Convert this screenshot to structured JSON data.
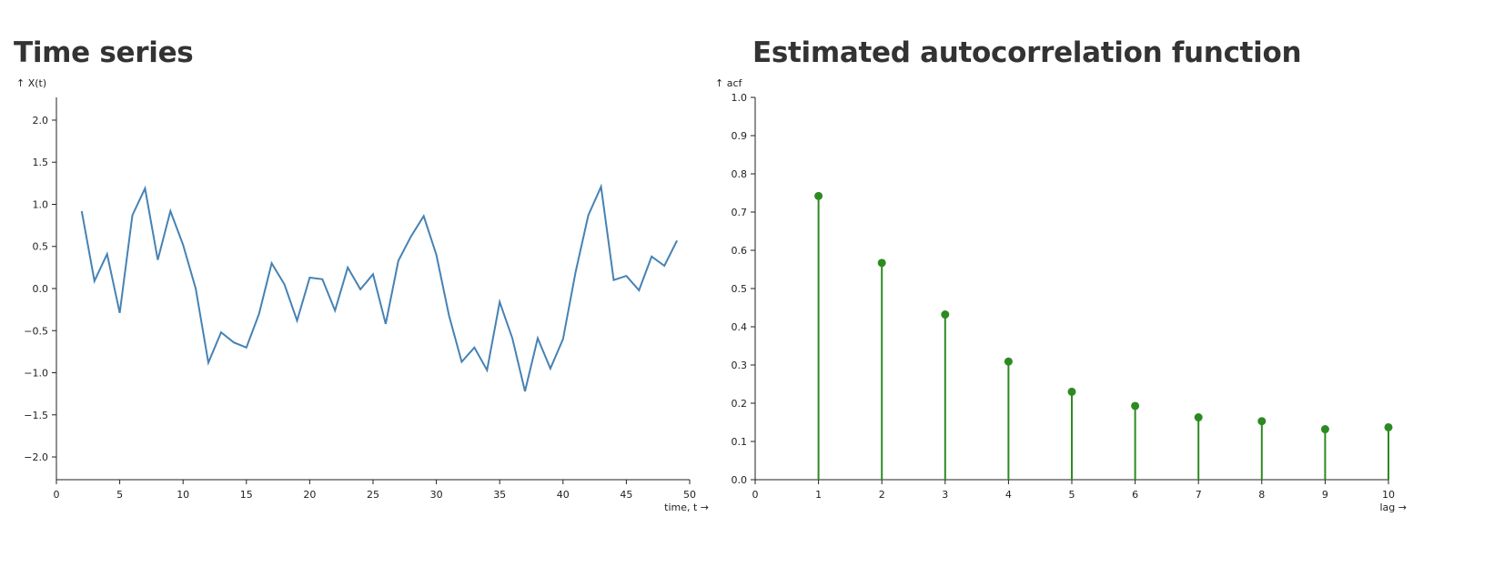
{
  "colors": {
    "time_series_line": "#4682b4",
    "acf_stem": "#2d8a22",
    "axis": "#222222",
    "title": "#333333"
  },
  "chart_data": [
    {
      "type": "line",
      "title": "Time series",
      "xlabel": "time, t →",
      "ylabel": "↑ X(t)",
      "xlim": [
        0,
        50
      ],
      "ylim": [
        -2.27,
        2.27
      ],
      "x_ticks": [
        0,
        5,
        10,
        15,
        20,
        25,
        30,
        35,
        40,
        45,
        50
      ],
      "y_ticks": [
        -2.0,
        -1.5,
        -1.0,
        -0.5,
        0.0,
        0.5,
        1.0,
        1.5,
        2.0
      ],
      "x_tick_labels": [
        "0",
        "5",
        "10",
        "15",
        "20",
        "25",
        "30",
        "35",
        "40",
        "45",
        "50"
      ],
      "y_tick_labels": [
        "−2.0",
        "−1.5",
        "−1.0",
        "−0.5",
        "0.0",
        "0.5",
        "1.0",
        "1.5",
        "2.0"
      ],
      "grid": false,
      "series": [
        {
          "x": [
            2,
            3,
            4,
            5,
            6,
            7,
            8,
            9,
            10,
            11,
            12,
            13,
            14,
            15,
            16,
            17,
            18,
            19,
            20,
            21,
            22,
            23,
            24,
            25,
            26,
            27,
            28,
            29,
            30,
            31,
            32,
            33,
            34,
            35,
            36,
            37,
            38,
            39,
            40,
            41,
            42,
            43,
            44,
            45,
            46,
            47,
            48,
            49
          ],
          "values": [
            0.92,
            0.09,
            0.41,
            -0.29,
            0.87,
            1.19,
            0.34,
            0.92,
            0.52,
            0.0,
            -0.88,
            -0.52,
            -0.64,
            -0.7,
            -0.3,
            0.3,
            0.05,
            -0.38,
            0.13,
            0.11,
            -0.26,
            0.25,
            -0.01,
            0.17,
            -0.42,
            0.33,
            0.62,
            0.86,
            0.4,
            -0.32,
            -0.87,
            -0.7,
            -0.97,
            -0.16,
            -0.59,
            -1.22,
            -0.59,
            -0.95,
            -0.6,
            0.2,
            0.87,
            1.21,
            0.1,
            0.15,
            -0.02,
            0.38,
            0.27,
            0.57
          ]
        }
      ]
    },
    {
      "type": "bar",
      "title": "Estimated autocorrelation function",
      "xlabel": "lag →",
      "ylabel": "↑ acf",
      "xlim": [
        0,
        10
      ],
      "ylim": [
        0,
        1.0
      ],
      "x_ticks": [
        0,
        1,
        2,
        3,
        4,
        5,
        6,
        7,
        8,
        9,
        10
      ],
      "y_ticks": [
        0.0,
        0.1,
        0.2,
        0.3,
        0.4,
        0.5,
        0.6,
        0.7,
        0.8,
        0.9,
        1.0
      ],
      "x_tick_labels": [
        "0",
        "1",
        "2",
        "3",
        "4",
        "5",
        "6",
        "7",
        "8",
        "9",
        "10"
      ],
      "y_tick_labels": [
        "0.0",
        "0.1",
        "0.2",
        "0.3",
        "0.4",
        "0.5",
        "0.6",
        "0.7",
        "0.8",
        "0.9",
        "1.0"
      ],
      "grid": false,
      "series": [
        {
          "x": [
            1,
            2,
            3,
            4,
            5,
            6,
            7,
            8,
            9,
            10
          ],
          "values": [
            0.742,
            0.567,
            0.432,
            0.309,
            0.23,
            0.193,
            0.163,
            0.153,
            0.132,
            0.137
          ]
        }
      ]
    }
  ]
}
